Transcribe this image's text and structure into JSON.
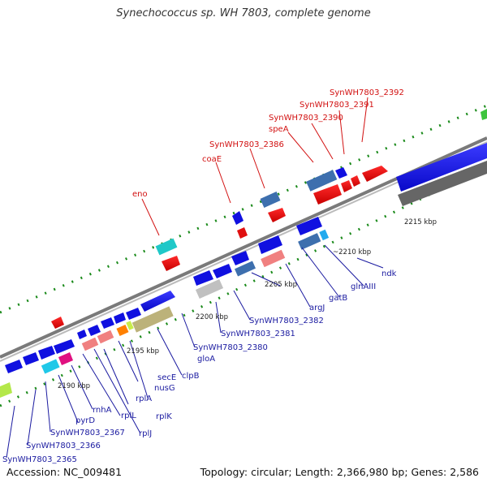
{
  "title": "Synechococcus sp. WH 7803, complete genome",
  "accession": "Accession: NC_009481",
  "stats": "Topology: circular; Length: 2,366,980 bp; Genes: 2,586",
  "scale_labels": [
    "2190 kbp",
    "2195 kbp",
    "2200 kbp",
    "2205 kbp",
    "~2210 kbp",
    "2215 kbp"
  ],
  "red_labels": [
    "eno",
    "coaE",
    "SynWH7803_2386",
    "speA",
    "SynWH7803_2390",
    "SynWH7803_2391",
    "SynWH7803_2392"
  ],
  "blue_labels": [
    "SynWH7803_2365",
    "SynWH7803_2366",
    "SynWH7803_2367",
    "pyrD",
    "rnhA",
    "rplL",
    "rplJ",
    "rplA",
    "rplK",
    "nusG",
    "secE",
    "clpB",
    "gloA",
    "SynWH7803_2380",
    "SynWH7803_2381",
    "SynWH7803_2382",
    "argJ",
    "gatB",
    "glnAIII",
    "ndk"
  ],
  "colors": {
    "forward_gene": "#d81010",
    "reverse_gene": "#1010e0",
    "backbone": "#888888",
    "tick": "#1a8a1a",
    "red_label": "#d21010",
    "blue_label": "#1a1aa0"
  }
}
